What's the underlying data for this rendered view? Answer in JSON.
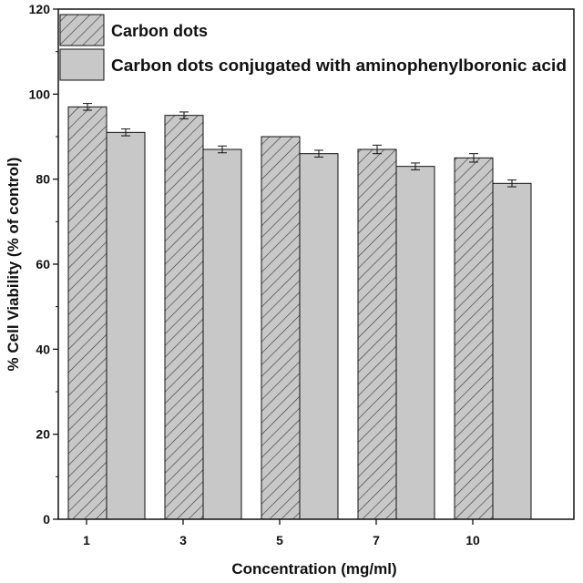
{
  "chart_data": {
    "type": "bar",
    "title": "",
    "xlabel": "Concentration (mg/ml)",
    "ylabel": "% Cell Viability (% of control)",
    "categories": [
      "1",
      "3",
      "5",
      "7",
      "10"
    ],
    "ylim": [
      0,
      120
    ],
    "yticks": [
      "0",
      "20",
      "40",
      "60",
      "80",
      "100",
      "120"
    ],
    "grid": false,
    "legend_position": "top-left",
    "series": [
      {
        "name": "Carbon dots",
        "values": [
          97,
          95,
          90,
          87,
          85
        ],
        "errors": [
          0.8,
          0.8,
          0.0,
          1.0,
          1.0
        ],
        "pattern": "diagonal-hatch",
        "color": "#c8c8c8"
      },
      {
        "name": "Carbon dots conjugated with aminophenylboronic acid",
        "values": [
          91,
          87,
          86,
          83,
          79
        ],
        "errors": [
          0.8,
          0.8,
          0.8,
          0.8,
          0.8
        ],
        "pattern": "solid",
        "color": "#c8c8c8"
      }
    ]
  }
}
